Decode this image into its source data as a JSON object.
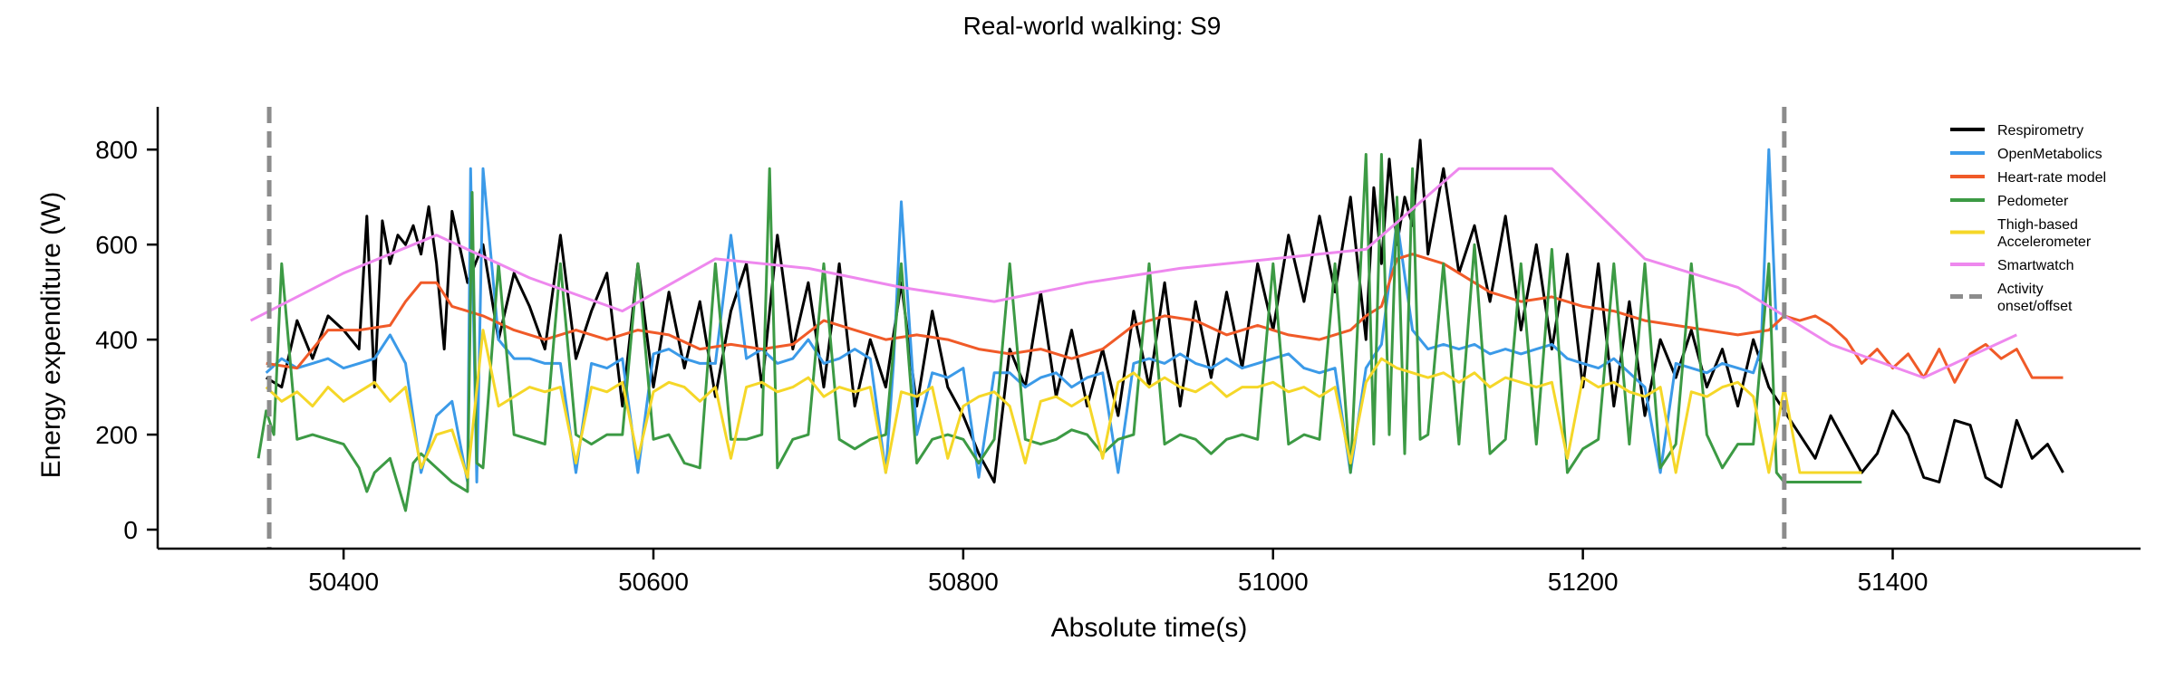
{
  "chart_data": {
    "type": "line",
    "title": "Real-world walking: S9",
    "xlabel": "Absolute time(s)",
    "ylabel": "Energy expenditure (W)",
    "xlim": [
      50280,
      51560
    ],
    "ylim": [
      -40,
      890
    ],
    "xticks": [
      50400,
      50600,
      50800,
      51000,
      51200,
      51400
    ],
    "yticks": [
      0,
      200,
      400,
      600,
      800
    ],
    "grid": false,
    "legend_position": "top-right",
    "series": [
      {
        "name": "Respirometry",
        "color": "#000000",
        "x": [
          50350,
          50360,
          50370,
          50380,
          50390,
          50400,
          50410,
          50415,
          50420,
          50425,
          50430,
          50435,
          50440,
          50445,
          50450,
          50455,
          50460,
          50465,
          50470,
          50480,
          50490,
          50500,
          50510,
          50520,
          50530,
          50540,
          50550,
          50560,
          50570,
          50580,
          50590,
          50600,
          50610,
          50620,
          50630,
          50640,
          50650,
          50660,
          50670,
          50680,
          50690,
          50700,
          50710,
          50720,
          50730,
          50740,
          50750,
          50760,
          50770,
          50780,
          50790,
          50800,
          50810,
          50820,
          50830,
          50840,
          50850,
          50860,
          50870,
          50880,
          50890,
          50900,
          50910,
          50920,
          50930,
          50940,
          50950,
          50960,
          50970,
          50980,
          50990,
          51000,
          51010,
          51020,
          51030,
          51040,
          51050,
          51060,
          51065,
          51070,
          51075,
          51080,
          51085,
          51090,
          51095,
          51100,
          51110,
          51120,
          51130,
          51140,
          51150,
          51160,
          51170,
          51180,
          51190,
          51200,
          51210,
          51220,
          51230,
          51240,
          51250,
          51260,
          51270,
          51280,
          51290,
          51300,
          51310,
          51320,
          51330,
          51340,
          51350,
          51360,
          51370,
          51380,
          51390,
          51400,
          51410,
          51420,
          51430,
          51440,
          51450,
          51460,
          51470,
          51480,
          51490,
          51500,
          51510
        ],
        "y": [
          320,
          300,
          440,
          360,
          450,
          420,
          380,
          660,
          300,
          650,
          560,
          620,
          600,
          640,
          580,
          680,
          560,
          380,
          670,
          520,
          600,
          400,
          540,
          470,
          380,
          620,
          360,
          460,
          540,
          260,
          560,
          300,
          500,
          340,
          480,
          280,
          460,
          560,
          300,
          620,
          380,
          520,
          300,
          560,
          260,
          400,
          300,
          520,
          260,
          460,
          300,
          240,
          160,
          100,
          380,
          300,
          500,
          280,
          420,
          260,
          380,
          240,
          460,
          300,
          520,
          260,
          480,
          320,
          500,
          340,
          560,
          420,
          620,
          480,
          660,
          500,
          700,
          400,
          720,
          560,
          780,
          600,
          700,
          640,
          820,
          580,
          760,
          540,
          640,
          480,
          660,
          420,
          600,
          380,
          580,
          300,
          560,
          260,
          480,
          240,
          400,
          320,
          420,
          300,
          380,
          260,
          400,
          300,
          250,
          200,
          150,
          240,
          180,
          120,
          160,
          250,
          200,
          110,
          100,
          230,
          220,
          110,
          90,
          230,
          150,
          180,
          120
        ]
      },
      {
        "name": "OpenMetabolics",
        "color": "#3B9AE8",
        "x": [
          50350,
          50360,
          50370,
          50380,
          50390,
          50400,
          50410,
          50420,
          50430,
          50440,
          50450,
          50460,
          50470,
          50480,
          50482,
          50486,
          50490,
          50500,
          50510,
          50520,
          50530,
          50540,
          50550,
          50560,
          50570,
          50580,
          50590,
          50600,
          50610,
          50620,
          50630,
          50640,
          50650,
          50660,
          50670,
          50680,
          50690,
          50700,
          50710,
          50720,
          50730,
          50740,
          50750,
          50755,
          50760,
          50770,
          50780,
          50790,
          50800,
          50810,
          50820,
          50830,
          50840,
          50850,
          50860,
          50870,
          50880,
          50890,
          50900,
          50910,
          50920,
          50930,
          50940,
          50950,
          50960,
          50970,
          50980,
          50990,
          51000,
          51010,
          51020,
          51030,
          51040,
          51050,
          51060,
          51070,
          51080,
          51090,
          51100,
          51110,
          51120,
          51130,
          51140,
          51150,
          51160,
          51170,
          51180,
          51190,
          51200,
          51210,
          51220,
          51230,
          51240,
          51250,
          51260,
          51270,
          51280,
          51290,
          51300,
          51310,
          51315,
          51320,
          51325
        ],
        "y": [
          330,
          360,
          340,
          350,
          360,
          340,
          350,
          360,
          410,
          350,
          120,
          240,
          270,
          100,
          760,
          100,
          760,
          400,
          360,
          360,
          350,
          350,
          120,
          350,
          340,
          360,
          120,
          370,
          380,
          360,
          350,
          350,
          620,
          360,
          380,
          350,
          360,
          400,
          350,
          360,
          380,
          360,
          120,
          350,
          690,
          200,
          330,
          320,
          340,
          110,
          330,
          330,
          300,
          320,
          330,
          300,
          320,
          330,
          120,
          350,
          360,
          350,
          370,
          350,
          340,
          360,
          340,
          350,
          360,
          370,
          340,
          330,
          340,
          120,
          340,
          390,
          650,
          420,
          380,
          390,
          380,
          390,
          370,
          380,
          370,
          380,
          390,
          360,
          350,
          340,
          360,
          330,
          300,
          120,
          350,
          340,
          330,
          350,
          340,
          330,
          380,
          800,
          420
        ]
      },
      {
        "name": "Heart-rate model",
        "color": "#F05A28",
        "x": [
          50350,
          50370,
          50390,
          50410,
          50430,
          50440,
          50450,
          50460,
          50470,
          50490,
          50510,
          50530,
          50550,
          50570,
          50590,
          50610,
          50630,
          50650,
          50670,
          50690,
          50710,
          50730,
          50750,
          50770,
          50790,
          50810,
          50830,
          50850,
          50870,
          50890,
          50910,
          50930,
          50950,
          50970,
          50990,
          51010,
          51030,
          51050,
          51060,
          51070,
          51080,
          51090,
          51100,
          51110,
          51120,
          51130,
          51140,
          51160,
          51180,
          51200,
          51220,
          51240,
          51260,
          51280,
          51300,
          51320,
          51330,
          51340,
          51350,
          51360,
          51370,
          51380,
          51390,
          51400,
          51410,
          51420,
          51430,
          51440,
          51450,
          51460,
          51470,
          51480,
          51490,
          51510
        ],
        "y": [
          350,
          340,
          420,
          420,
          430,
          480,
          520,
          520,
          470,
          450,
          420,
          400,
          420,
          400,
          420,
          410,
          380,
          390,
          380,
          390,
          440,
          420,
          400,
          410,
          400,
          380,
          370,
          380,
          360,
          380,
          430,
          450,
          440,
          410,
          430,
          410,
          400,
          420,
          450,
          470,
          570,
          580,
          570,
          560,
          540,
          520,
          500,
          480,
          490,
          470,
          460,
          440,
          430,
          420,
          410,
          420,
          450,
          440,
          450,
          430,
          400,
          350,
          380,
          340,
          370,
          320,
          380,
          310,
          370,
          390,
          360,
          380,
          320,
          320
        ]
      },
      {
        "name": "Pedometer",
        "color": "#3C9A44",
        "x": [
          50345,
          50350,
          50355,
          50360,
          50370,
          50380,
          50390,
          50400,
          50410,
          50415,
          50420,
          50430,
          50440,
          50445,
          50450,
          50460,
          50470,
          50480,
          50483,
          50486,
          50490,
          50500,
          50510,
          50520,
          50530,
          50540,
          50550,
          50560,
          50570,
          50580,
          50590,
          50600,
          50610,
          50620,
          50630,
          50640,
          50650,
          50660,
          50670,
          50675,
          50680,
          50690,
          50700,
          50710,
          50720,
          50730,
          50740,
          50750,
          50760,
          50770,
          50780,
          50790,
          50800,
          50810,
          50820,
          50830,
          50840,
          50850,
          50860,
          50870,
          50880,
          50890,
          50900,
          50910,
          50920,
          50930,
          50940,
          50950,
          50960,
          50970,
          50980,
          50990,
          51000,
          51010,
          51020,
          51030,
          51040,
          51050,
          51060,
          51065,
          51070,
          51075,
          51080,
          51085,
          51090,
          51095,
          51100,
          51110,
          51120,
          51130,
          51140,
          51150,
          51160,
          51170,
          51180,
          51190,
          51200,
          51210,
          51220,
          51230,
          51240,
          51250,
          51260,
          51270,
          51280,
          51290,
          51300,
          51310,
          51320,
          51325,
          51330,
          51380
        ],
        "y": [
          150,
          250,
          200,
          560,
          190,
          200,
          190,
          180,
          130,
          80,
          120,
          150,
          40,
          140,
          160,
          130,
          100,
          80,
          710,
          140,
          130,
          560,
          200,
          190,
          180,
          560,
          200,
          180,
          200,
          200,
          560,
          190,
          200,
          140,
          130,
          560,
          190,
          190,
          200,
          760,
          130,
          190,
          200,
          560,
          190,
          170,
          190,
          200,
          560,
          140,
          190,
          200,
          190,
          140,
          190,
          560,
          190,
          180,
          190,
          210,
          200,
          160,
          190,
          200,
          560,
          180,
          200,
          190,
          160,
          190,
          200,
          190,
          560,
          180,
          200,
          190,
          560,
          120,
          790,
          180,
          790,
          200,
          700,
          160,
          760,
          190,
          200,
          560,
          180,
          600,
          160,
          190,
          560,
          180,
          590,
          120,
          170,
          190,
          560,
          180,
          560,
          130,
          180,
          560,
          200,
          130,
          180,
          180,
          560,
          120,
          100,
          100
        ]
      },
      {
        "name": "Thigh-based Accelerometer",
        "color": "#F5D728",
        "x": [
          50350,
          50360,
          50370,
          50380,
          50390,
          50400,
          50410,
          50420,
          50430,
          50440,
          50450,
          50460,
          50470,
          50480,
          50490,
          50500,
          50510,
          50520,
          50530,
          50540,
          50550,
          50560,
          50570,
          50580,
          50590,
          50600,
          50610,
          50620,
          50630,
          50640,
          50650,
          50660,
          50670,
          50680,
          50690,
          50700,
          50710,
          50720,
          50730,
          50740,
          50750,
          50760,
          50770,
          50780,
          50790,
          50800,
          50810,
          50820,
          50830,
          50840,
          50850,
          50860,
          50870,
          50880,
          50890,
          50900,
          50910,
          50920,
          50930,
          50940,
          50950,
          50960,
          50970,
          50980,
          50990,
          51000,
          51010,
          51020,
          51030,
          51040,
          51050,
          51060,
          51070,
          51080,
          51090,
          51100,
          51110,
          51120,
          51130,
          51140,
          51150,
          51160,
          51170,
          51180,
          51190,
          51200,
          51210,
          51220,
          51230,
          51240,
          51250,
          51260,
          51270,
          51280,
          51290,
          51300,
          51310,
          51320,
          51330,
          51340,
          51380
        ],
        "y": [
          300,
          270,
          290,
          260,
          300,
          270,
          290,
          310,
          270,
          300,
          130,
          200,
          210,
          110,
          420,
          260,
          280,
          300,
          290,
          300,
          140,
          300,
          290,
          310,
          150,
          290,
          310,
          300,
          270,
          300,
          150,
          300,
          310,
          290,
          300,
          320,
          280,
          300,
          290,
          300,
          120,
          290,
          280,
          300,
          150,
          260,
          280,
          290,
          260,
          140,
          270,
          280,
          260,
          280,
          150,
          310,
          330,
          300,
          320,
          300,
          290,
          310,
          280,
          300,
          300,
          310,
          290,
          300,
          280,
          300,
          140,
          310,
          360,
          340,
          330,
          320,
          330,
          310,
          330,
          300,
          320,
          310,
          300,
          310,
          150,
          320,
          300,
          310,
          290,
          280,
          300,
          120,
          290,
          280,
          300,
          310,
          280,
          120,
          300,
          120,
          120
        ]
      },
      {
        "name": "Smartwatch",
        "color": "#EE88EE",
        "x": [
          50340,
          50400,
          50460,
          50520,
          50580,
          50640,
          50700,
          50760,
          50820,
          50880,
          50940,
          51000,
          51060,
          51120,
          51180,
          51240,
          51300,
          51360,
          51420,
          51480
        ],
        "y": [
          440,
          540,
          620,
          530,
          460,
          570,
          550,
          510,
          480,
          520,
          550,
          570,
          590,
          760,
          760,
          570,
          510,
          390,
          320,
          410
        ]
      }
    ],
    "vlines": {
      "name": "Activity onset/offset",
      "x": [
        50352,
        51330
      ],
      "color": "#8C8C8C"
    }
  },
  "legend": [
    {
      "label": "Respirometry",
      "color": "#000000"
    },
    {
      "label": "OpenMetabolics",
      "color": "#3B9AE8"
    },
    {
      "label": "Heart-rate model",
      "color": "#F05A28"
    },
    {
      "label": "Pedometer",
      "color": "#3C9A44"
    },
    {
      "label": "Thigh-based\nAccelerometer",
      "color": "#F5D728"
    },
    {
      "label": "Smartwatch",
      "color": "#EE88EE"
    },
    {
      "label": "Activity\nonset/offset",
      "color": "#8C8C8C",
      "dashed": true
    }
  ]
}
